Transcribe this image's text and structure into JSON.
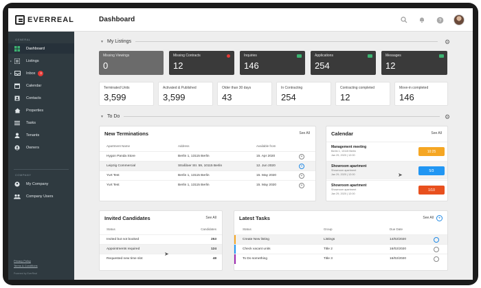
{
  "app": {
    "logo_text": "EVERREAL",
    "page_title": "Dashboard"
  },
  "sidebar": {
    "section_general": "GENERAL",
    "items": [
      {
        "label": "Dashboard",
        "icon": "dashboard-icon",
        "active": true,
        "caret": false
      },
      {
        "label": "Listings",
        "icon": "listings-icon",
        "active": false,
        "caret": true
      },
      {
        "label": "Inbox",
        "icon": "inbox-icon",
        "active": false,
        "caret": true,
        "badge": "3"
      },
      {
        "label": "Calendar",
        "icon": "calendar-icon",
        "active": false,
        "caret": false
      },
      {
        "label": "Contacts",
        "icon": "contacts-icon",
        "active": false,
        "caret": false
      },
      {
        "label": "Properties",
        "icon": "properties-icon",
        "active": false,
        "caret": false
      },
      {
        "label": "Tasks",
        "icon": "tasks-icon",
        "active": false,
        "caret": false
      },
      {
        "label": "Tenants",
        "icon": "tenants-icon",
        "active": false,
        "caret": false
      },
      {
        "label": "Owners",
        "icon": "owners-icon",
        "active": false,
        "caret": false
      }
    ],
    "section_company": "COMPANY",
    "company_items": [
      {
        "label": "My Company",
        "icon": "company-icon"
      },
      {
        "label": "Company Users",
        "icon": "users-icon"
      }
    ],
    "footer_links": [
      "Privacy Policy",
      "Terms & Conditions"
    ],
    "powered_by": "Powered by EverReal"
  },
  "listings": {
    "title": "My Listings",
    "dark_cards": [
      {
        "label": "Missing Viewings",
        "value": "0",
        "grey": true
      },
      {
        "label": "Missing Contracts",
        "value": "12",
        "marker": "dot"
      },
      {
        "label": "Inquiries",
        "value": "146",
        "marker": "flag"
      },
      {
        "label": "Applications",
        "value": "254",
        "marker": "flag"
      },
      {
        "label": "Messages",
        "value": "12",
        "marker": "flag"
      }
    ],
    "light_cards": [
      {
        "label": "Terminated Units",
        "value": "3,599"
      },
      {
        "label": "Activated & Published",
        "value": "3,599"
      },
      {
        "label": "Older than 30 days",
        "value": "43"
      },
      {
        "label": "In Contracting",
        "value": "254"
      },
      {
        "label": "Contracting completed",
        "value": "12"
      },
      {
        "label": "Move-in completed",
        "value": "146"
      }
    ]
  },
  "todo": {
    "title": "To Do"
  },
  "terminations": {
    "title": "New Terminations",
    "see_all": "See All",
    "columns": [
      "Apartment Name",
      "Address",
      "Available from"
    ],
    "rows": [
      {
        "name": "Hygon Panda Store",
        "address": "Berlin 1, 13115 Berlin",
        "date": "15. Apr 2020",
        "highlight": false
      },
      {
        "name": "Leipzig Commercial",
        "address": "Straßloer Str. 59, 10115 Berlin",
        "date": "12. Jun 2020",
        "highlight": true
      },
      {
        "name": "Yurt Test",
        "address": "Berlin 1, 13115 Berlin",
        "date": "15. May 2020",
        "highlight": false
      },
      {
        "name": "Yurt Test",
        "address": "Berlin 1, 13115 Berlin",
        "date": "15. May 2020",
        "highlight": false
      }
    ]
  },
  "calendar": {
    "title": "Calendar",
    "see_all": "See All",
    "items": [
      {
        "title": "Management meeting",
        "line1": "Berlin 1, 13115 Berlin",
        "line2": "Jan 29, 2020 | 12:00",
        "tag": "10:25",
        "tag_color": "#f5a623",
        "highlight": false
      },
      {
        "title": "Showroom apartment",
        "line1": "Showroom apartment",
        "line2": "Jan 29, 2020 | 12:00",
        "tag": "5/3",
        "tag_color": "#2196f3",
        "highlight": true
      },
      {
        "title": "Showroom apartment",
        "line1": "Showroom apartment",
        "line2": "Jan 29, 2020 | 12:00",
        "tag": "1/10",
        "tag_color": "#e8501e",
        "highlight": false
      }
    ]
  },
  "candidates": {
    "title": "Invited Candidates",
    "see_all": "See All",
    "columns": [
      "Status",
      "Candidates"
    ],
    "rows": [
      {
        "status": "Invited but not booked",
        "count": "253",
        "highlight": false
      },
      {
        "status": "Appointments required",
        "count": "124",
        "highlight": true
      },
      {
        "status": "Requested new time slot",
        "count": "48",
        "highlight": false
      }
    ]
  },
  "tasks": {
    "title": "Latest Tasks",
    "see_all": "See All",
    "columns": [
      "Status",
      "Group",
      "Due Date"
    ],
    "rows": [
      {
        "status": "Create New listing",
        "group": "Listings",
        "date": "14/02/2020",
        "stripe": "#f5a623",
        "highlight": true
      },
      {
        "status": "Check vacant units",
        "group": "Title 2",
        "date": "16/02/2020",
        "stripe": "#2196f3",
        "highlight": false
      },
      {
        "status": "To Do something",
        "group": "Title 3",
        "date": "16/02/2020",
        "stripe": "#9c27b0",
        "highlight": false
      }
    ]
  }
}
